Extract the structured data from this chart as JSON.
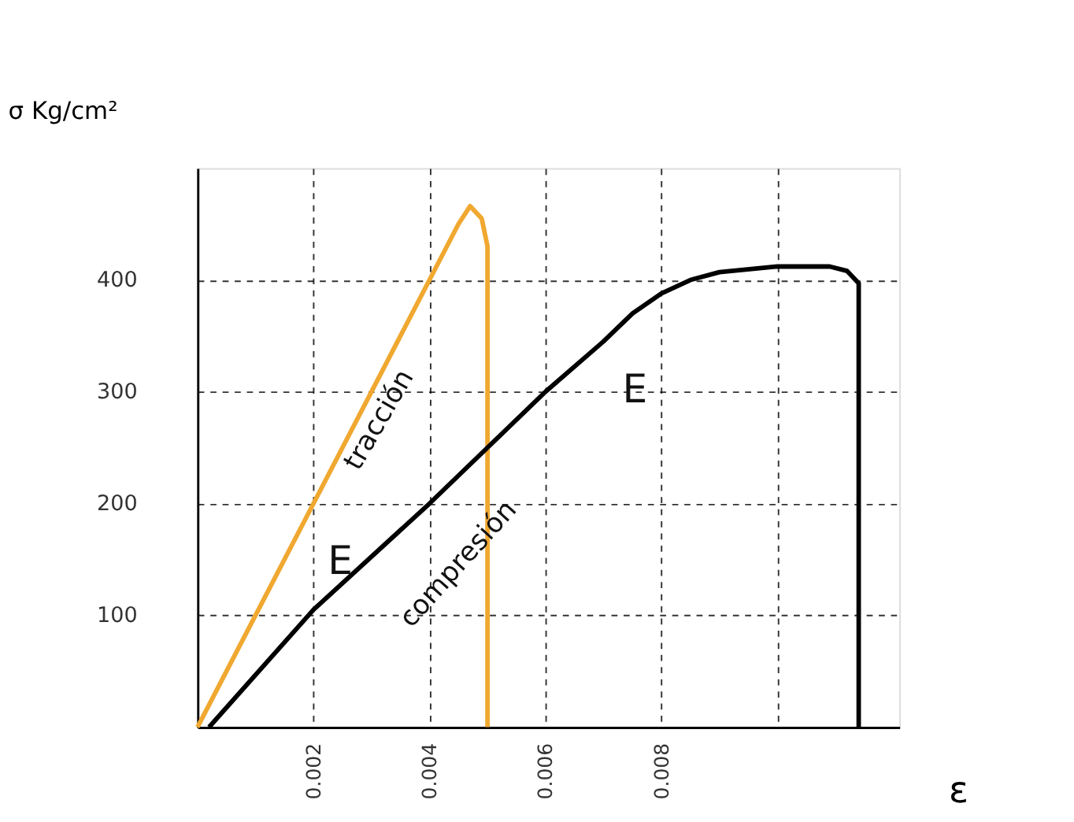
{
  "chart_data": {
    "type": "line",
    "xlabel": "ε",
    "ylabel": "σ Kg/cm²",
    "xlim": [
      0,
      0.0121
    ],
    "ylim": [
      0,
      500
    ],
    "xticks": [
      0.002,
      0.004,
      0.006,
      0.008,
      {
        "value": 0.01,
        "label": null
      }
    ],
    "yticks": [
      100,
      200,
      300,
      400
    ],
    "grid": true,
    "marker": "none",
    "line_style": "solid",
    "series": [
      {
        "color": "#f0a830",
        "x": [
          0,
          0.002,
          0.004,
          0.0045,
          0.0047,
          0.0049,
          0.005,
          0.005,
          0.005
        ],
        "values": [
          0,
          200,
          400,
          450,
          466,
          455,
          430,
          300,
          0
        ]
      },
      {
        "color": "#000000",
        "x": [
          0.0002,
          0.002,
          0.004,
          0.006,
          0.007,
          0.0075,
          0.008,
          0.0085,
          0.009,
          0.01,
          0.0109,
          0.0112,
          0.0114,
          0.0114
        ],
        "values": [
          0,
          105,
          200,
          300,
          345,
          370,
          388,
          400,
          407,
          412,
          412,
          408,
          397,
          0
        ]
      }
    ],
    "annotations": [
      "tracción",
      "compresión",
      "E",
      "E"
    ]
  }
}
